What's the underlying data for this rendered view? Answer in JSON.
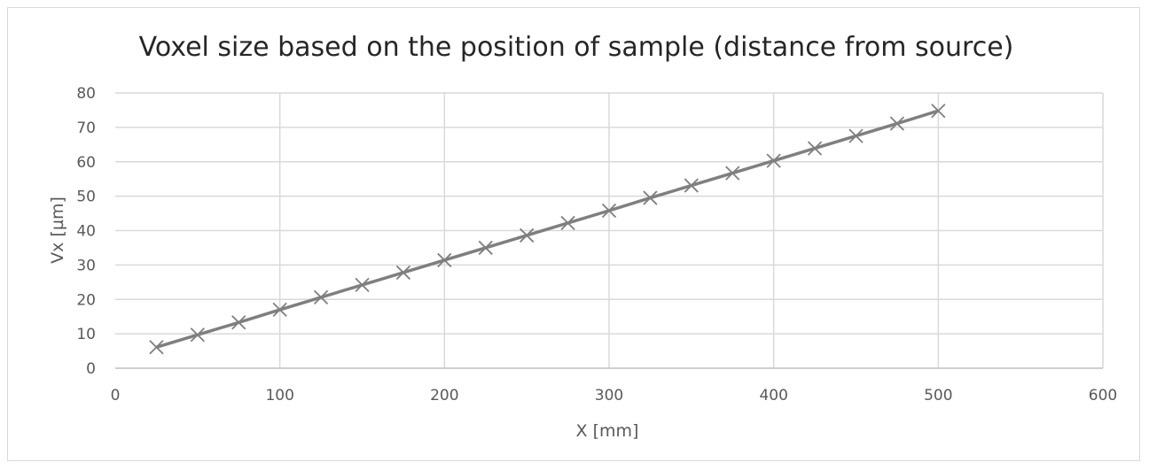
{
  "chart_data": {
    "type": "scatter",
    "title": "Voxel size based on the position of sample (distance from source)",
    "xlabel": "X [mm]",
    "ylabel": "Vx [µm]",
    "xlim": [
      0,
      600
    ],
    "ylim": [
      0,
      80
    ],
    "xticks": [
      "0",
      "100",
      "200",
      "300",
      "400",
      "500",
      "600"
    ],
    "yticks": [
      "0",
      "10",
      "20",
      "30",
      "40",
      "50",
      "60",
      "70",
      "80"
    ],
    "grid": true,
    "legend": "none",
    "marker": "x",
    "line": "straight",
    "series": [
      {
        "color": "#7f7f7f",
        "x": [
          25,
          50,
          75,
          100,
          125,
          150,
          175,
          200,
          225,
          250,
          275,
          300,
          325,
          350,
          375,
          400,
          425,
          450,
          475,
          500
        ],
        "y": [
          6.1,
          9.7,
          13.3,
          17.0,
          20.6,
          24.2,
          27.8,
          31.4,
          35.0,
          38.6,
          42.2,
          45.8,
          49.5,
          53.1,
          56.7,
          60.3,
          63.9,
          67.5,
          71.1,
          74.8
        ]
      }
    ]
  }
}
